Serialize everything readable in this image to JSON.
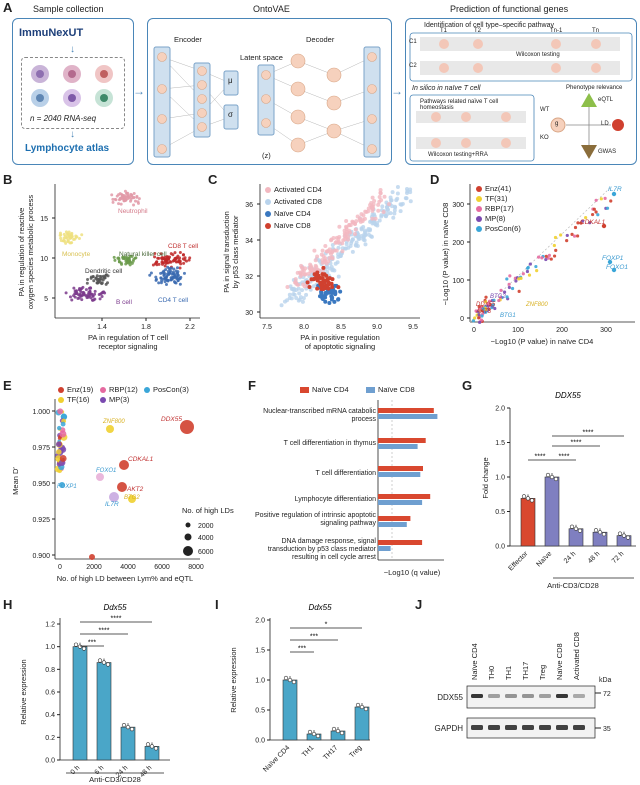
{
  "panel_labels": {
    "A": "A",
    "B": "B",
    "C": "C",
    "D": "D",
    "E": "E",
    "F": "F",
    "G": "G",
    "H": "H",
    "I": "I",
    "J": "J"
  },
  "panelA": {
    "sample_title": "Sample collection",
    "immunexut": "ImmuNexUT",
    "n_text": "n = 2040 RNA-seq",
    "atlas": "Lymphocyte atlas",
    "ontovae_title": "OntoVAE",
    "encoder": "Encoder",
    "decoder": "Decoder",
    "latent": "Latent space",
    "latent_z": "(z)",
    "mu": "μ",
    "sigma": "σ",
    "pred_title": "Prediction of functional genes",
    "identification": "Identification of cell type–specific pathway",
    "wilcoxon1": "Wilcoxon testing",
    "insilico": "In silico in naïve T cell",
    "pathways_related": "Pathways related naïve T cell homeostasis",
    "wilcoxon_rra": "Wilcoxon testing+RRA",
    "wt": "WT",
    "ko": "KO",
    "phenotype": "Phenotype relevance",
    "eqtl": "eQTL",
    "gwas": "GWAS",
    "ld": "LD",
    "g_label": "g",
    "c1": "C1",
    "c2": "C2",
    "t_labels": [
      "T1",
      "T2",
      "Tn-1",
      "Tn"
    ]
  },
  "panelB": {
    "xlabel": "PA in regulation of T cell receptor signaling",
    "ylabel": "PA in regulation of reactive oxygen species metabolic process",
    "xticks": [
      "1.4",
      "1.8",
      "2.2"
    ],
    "yticks": [
      "5",
      "10",
      "15"
    ],
    "clusters": [
      "Neutrophil",
      "Monocyte",
      "Natural killer cell",
      "CD8 T cell",
      "Dendritic cell",
      "B cell",
      "CD4 T cell"
    ]
  },
  "panelC": {
    "xlabel": "PA in positive regulation of apoptotic signaling",
    "ylabel": "PA in signal transduction by p53 class mediator",
    "xticks": [
      "7.5",
      "8.0",
      "8.5",
      "9.0",
      "9.5"
    ],
    "yticks": [
      "30",
      "32",
      "34",
      "36"
    ],
    "legend": [
      "Activated CD4",
      "Activated CD8",
      "Naïve CD4",
      "Naïve CD8"
    ]
  },
  "panelD": {
    "xlabel": "−Log10 (P value) in naïve CD4",
    "ylabel": "−Log10 (P value) in naïve CD8",
    "xticks": [
      "0",
      "100",
      "200",
      "300"
    ],
    "yticks": [
      "0",
      "100",
      "200",
      "300"
    ],
    "legend": [
      "Enz(41)",
      "TF(31)",
      "RBP(17)",
      "MP(8)",
      "PosCon(6)"
    ],
    "genes": [
      "IL7R",
      "CDKAL1",
      "FOXP1",
      "FOXO1",
      "BTG2",
      "DDX55",
      "AKT3",
      "ZNF800",
      "BTG1"
    ]
  },
  "panelE": {
    "xlabel": "No. of high LD between Lym% and eQTL",
    "ylabel": "Mean D′",
    "xticks": [
      "0",
      "2000",
      "4000",
      "6000",
      "8000"
    ],
    "yticks": [
      "0.900",
      "0.925",
      "0.950",
      "0.975",
      "1.000"
    ],
    "legend": [
      "Enz(19)",
      "RBP(12)",
      "PosCon(3)",
      "TF(16)",
      "MP(3)"
    ],
    "size_title": "No. of high LDs",
    "sizes": [
      "2000",
      "4000",
      "6000"
    ],
    "genes": [
      "DDX55",
      "ZNF800",
      "CDKAL1",
      "FOXO1",
      "AKT2",
      "FOXP1",
      "IL7R",
      "BTG2"
    ]
  },
  "panelF": {
    "legend": [
      "Naïve CD4",
      "Naïve CD8"
    ],
    "xlabel": "−Log10 (q value)",
    "terms": [
      "Nuclear-transcribed mRNA catabolic process",
      "T cell differentiation in thymus",
      "T cell differentiation",
      "Lymphocyte differentiation",
      "Positive regulation of intrinsic apoptotic signaling pathway",
      "DNA damage response, signal transduction by p53 class mediator resulting in cell cycle arrest"
    ]
  },
  "panelG": {
    "title": "DDX55",
    "ylabel": "Fold change",
    "yticks": [
      "0.0",
      "0.5",
      "1.0",
      "1.5",
      "2.0"
    ],
    "categories": [
      "Effector",
      "Naïve",
      "24 h",
      "48 h",
      "72 h"
    ],
    "xgroup": "Anti-CD3/CD28",
    "stars": [
      "****",
      "****",
      "****",
      "****"
    ]
  },
  "panelH": {
    "title": "Ddx55",
    "ylabel": "Relative expression",
    "yticks": [
      "0.0",
      "0.2",
      "0.4",
      "0.6",
      "0.8",
      "1.0",
      "1.2"
    ],
    "categories": [
      "0 h",
      "6 h",
      "24 h",
      "48 h"
    ],
    "xgroup": "Anti-CD3/CD28",
    "stars": [
      "****",
      "****",
      "***"
    ]
  },
  "panelI": {
    "title": "Ddx55",
    "ylabel": "Relative expression",
    "yticks": [
      "0.0",
      "0.5",
      "1.0",
      "1.5",
      "2.0"
    ],
    "categories": [
      "Naïve CD4",
      "TH1",
      "TH17",
      "Treg"
    ],
    "stars": [
      "*",
      "***",
      "***"
    ]
  },
  "panelJ": {
    "lanes": [
      "Naïve CD4",
      "TH0",
      "TH1",
      "TH17",
      "Treg",
      "Naïve CD8",
      "Activated CD8"
    ],
    "kda": "kDa",
    "m72": "72",
    "m35": "35",
    "ddx55": "DDX55",
    "gapdh": "GAPDH"
  },
  "colors": {
    "blue": "#4a86b8",
    "red": "#d0402f",
    "pink": "#e8a0a8",
    "lightblue": "#9ec3e6",
    "green": "#4a8a3a",
    "purple": "#7b3a8c",
    "yellow": "#f0d030",
    "teal": "#3aa6c8"
  },
  "chart_data": [
    {
      "type": "bar",
      "title": "DDX55",
      "categories": [
        "Effector",
        "Naïve",
        "24 h",
        "48 h",
        "72 h"
      ],
      "values": [
        0.69,
        1.0,
        0.25,
        0.2,
        0.15
      ],
      "ylabel": "Fold change",
      "ylim": [
        0,
        2.0
      ]
    },
    {
      "type": "bar",
      "title": "Ddx55",
      "categories": [
        "0 h",
        "6 h",
        "24 h",
        "48 h"
      ],
      "values": [
        1.0,
        0.86,
        0.29,
        0.12
      ],
      "ylabel": "Relative expression",
      "ylim": [
        0,
        1.2
      ]
    },
    {
      "type": "bar",
      "title": "Ddx55",
      "categories": [
        "Naïve CD4",
        "TH1",
        "TH17",
        "Treg"
      ],
      "values": [
        1.0,
        0.1,
        0.15,
        0.55
      ],
      "ylabel": "Relative expression",
      "ylim": [
        0,
        2.0
      ]
    },
    {
      "type": "bar",
      "xlabel": "−Log10 (q value)",
      "categories": [
        "Nuclear-transcribed mRNA catabolic process",
        "T cell differentiation in thymus",
        "T cell differentiation",
        "Lymphocyte differentiation",
        "Positive regulation of intrinsic apoptotic signaling pathway",
        "DNA damage response, signal transduction by p53 class mediator resulting in cell cycle arrest"
      ],
      "series": [
        {
          "name": "Naïve CD4",
          "values": [
            6.2,
            5.3,
            5.0,
            5.8,
            3.6,
            4.9
          ]
        },
        {
          "name": "Naïve CD8",
          "values": [
            6.6,
            4.4,
            4.7,
            4.9,
            3.2,
            1.4
          ]
        }
      ]
    }
  ]
}
